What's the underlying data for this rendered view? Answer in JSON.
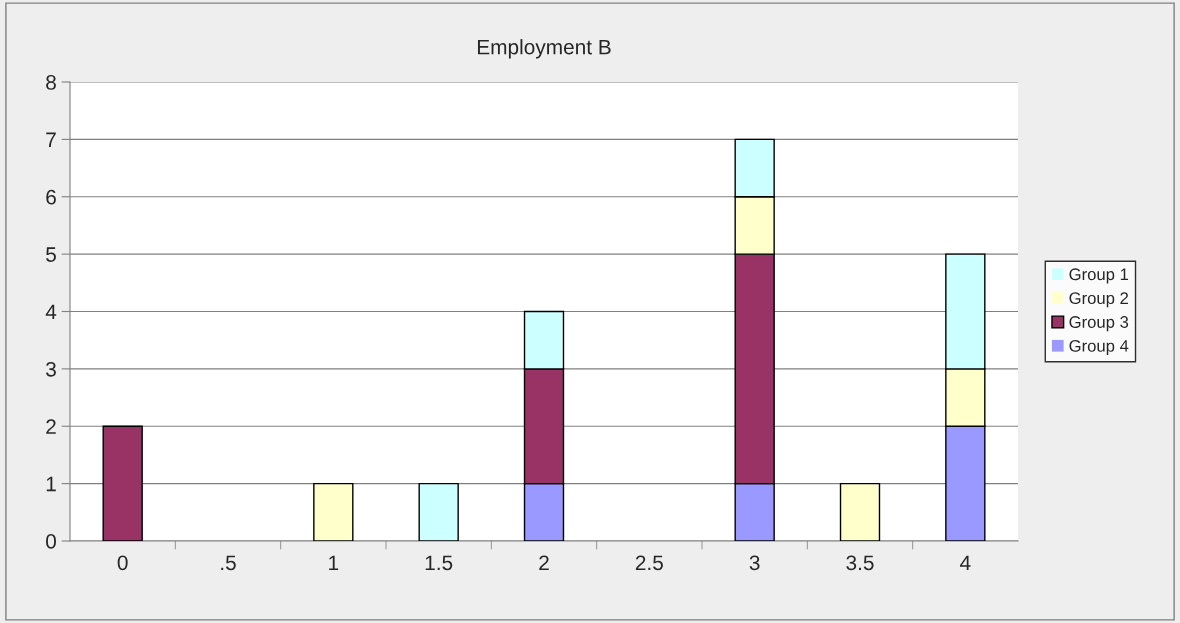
{
  "chart_data": {
    "type": "bar",
    "title": "Employment B",
    "stacked": true,
    "categories": [
      "0",
      ".5",
      "1",
      "1.5",
      "2",
      "2.5",
      "3",
      "3.5",
      "4"
    ],
    "series": [
      {
        "name": "Group 4",
        "color": "#9999ff",
        "values": [
          0,
          0,
          0,
          0,
          1,
          0,
          1,
          0,
          2
        ]
      },
      {
        "name": "Group 3",
        "color": "#993366",
        "values": [
          2,
          0,
          0,
          0,
          2,
          0,
          4,
          0,
          0
        ]
      },
      {
        "name": "Group 2",
        "color": "#ffffcc",
        "values": [
          0,
          0,
          1,
          0,
          0,
          0,
          1,
          1,
          1
        ]
      },
      {
        "name": "Group 1",
        "color": "#ccffff",
        "values": [
          0,
          0,
          0,
          1,
          1,
          0,
          1,
          0,
          2
        ]
      }
    ],
    "ylim": [
      0,
      8
    ],
    "yticks": [
      0,
      1,
      2,
      3,
      4,
      5,
      6,
      7,
      8
    ],
    "grid": "y",
    "legend": "right"
  }
}
